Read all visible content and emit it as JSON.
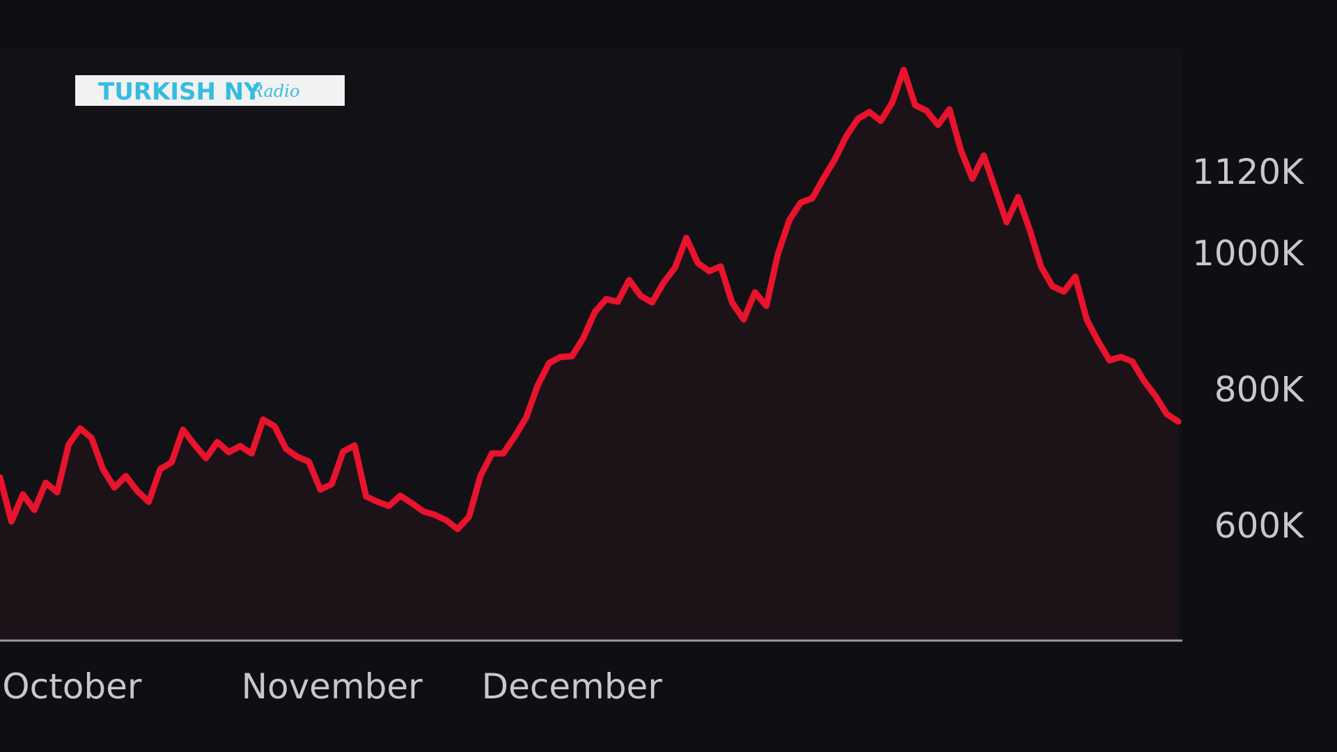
{
  "watermark": {
    "wordmark": "TURKISH NY",
    "script": "Radio"
  },
  "colors": {
    "background": "#0f0e12",
    "line": "#e8132d",
    "area_fill": "#1c1319",
    "axis": "#9c9aa0",
    "tick_text": "#c9c6cc",
    "logo_text": "#35bde0",
    "logo_background": "#f2f2f2"
  },
  "chart_data": {
    "type": "line",
    "title": "",
    "xlabel": "",
    "ylabel": "",
    "x_tick_labels": [
      "October",
      "November",
      "December"
    ],
    "y_tick_labels": [
      "600K",
      "800K",
      "1000K",
      "1120K"
    ],
    "y_tick_values": [
      600000,
      800000,
      1000000,
      1120000
    ],
    "ylim": [
      430000,
      1300000
    ],
    "x_month_positions": [
      0.2,
      21.1,
      42.1
    ],
    "grid": false,
    "area_fill_under_line": true,
    "series": [
      {
        "values": [
          670000,
          605000,
          645000,
          622000,
          662000,
          648000,
          718000,
          742000,
          728000,
          682000,
          655000,
          672000,
          650000,
          634000,
          682000,
          692000,
          740000,
          718000,
          698000,
          722000,
          707000,
          716000,
          705000,
          755000,
          745000,
          712000,
          700000,
          693000,
          652000,
          660000,
          708000,
          717000,
          642000,
          634000,
          628000,
          643000,
          632000,
          620000,
          615000,
          607000,
          594000,
          612000,
          672000,
          705000,
          705000,
          730000,
          758000,
          805000,
          838000,
          847000,
          848000,
          875000,
          913000,
          932000,
          928000,
          960000,
          937000,
          927000,
          956000,
          978000,
          1022000,
          985000,
          973000,
          980000,
          927000,
          902000,
          942000,
          922000,
          998000,
          1048000,
          1074000,
          1080000,
          1110000,
          1138000,
          1172000,
          1197000,
          1207000,
          1194000,
          1221000,
          1269000,
          1217000,
          1209000,
          1188000,
          1211000,
          1151000,
          1109000,
          1143000,
          1094000,
          1045000,
          1082000,
          1035000,
          980000,
          951000,
          943000,
          965000,
          902000,
          870000,
          842000,
          847000,
          840000,
          812000,
          790000,
          763000,
          752000
        ]
      }
    ]
  }
}
